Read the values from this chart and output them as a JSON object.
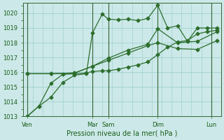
{
  "background_color": "#cce8e8",
  "grid_color": "#99cccc",
  "line_color": "#2d6e2d",
  "title": "Pression niveau de la mer( hPa )",
  "ylim": [
    1013,
    1020.7
  ],
  "yticks": [
    1013,
    1014,
    1015,
    1016,
    1017,
    1018,
    1019,
    1020
  ],
  "xlim": [
    0,
    10
  ],
  "day_labels": [
    "Ven",
    "Mar",
    "Sam",
    "Dim",
    "Lun"
  ],
  "day_positions": [
    0.2,
    3.5,
    4.3,
    6.8,
    9.5
  ],
  "vline_positions": [
    0.2,
    3.5,
    4.3,
    6.8,
    9.5
  ],
  "series1_x": [
    0.2,
    0.8,
    1.4,
    2.0,
    2.6,
    3.2,
    3.5,
    4.0,
    4.3,
    4.8,
    5.3,
    5.8,
    6.3,
    6.8,
    7.3,
    7.8,
    8.3,
    8.8,
    9.3,
    9.8
  ],
  "series1_y": [
    1013.0,
    1013.7,
    1014.3,
    1015.3,
    1015.8,
    1015.9,
    1018.65,
    1019.95,
    1019.6,
    1019.55,
    1019.6,
    1019.5,
    1019.65,
    1020.55,
    1019.0,
    1019.15,
    1018.1,
    1019.0,
    1019.0,
    1019.0
  ],
  "series2_x": [
    0.2,
    1.4,
    2.6,
    3.5,
    4.3,
    5.3,
    6.3,
    6.8,
    7.8,
    8.8,
    9.8
  ],
  "series2_y": [
    1015.9,
    1015.9,
    1015.95,
    1016.4,
    1016.95,
    1017.5,
    1017.9,
    1018.95,
    1018.0,
    1018.1,
    1018.75
  ],
  "series3_x": [
    0.2,
    1.4,
    2.6,
    3.5,
    4.3,
    5.3,
    6.3,
    6.8,
    7.8,
    8.8,
    9.8
  ],
  "series3_y": [
    1015.9,
    1015.9,
    1015.95,
    1016.4,
    1016.8,
    1017.3,
    1017.8,
    1018.0,
    1017.6,
    1017.55,
    1018.15
  ],
  "series4_x": [
    0.2,
    0.8,
    1.4,
    2.0,
    2.6,
    3.2,
    3.5,
    4.0,
    4.3,
    4.8,
    5.3,
    5.8,
    6.3,
    6.8,
    7.3,
    7.8,
    8.3,
    8.8,
    9.3,
    9.8
  ],
  "series4_y": [
    1013.0,
    1013.7,
    1015.25,
    1015.85,
    1015.9,
    1015.95,
    1016.05,
    1016.1,
    1016.1,
    1016.2,
    1016.35,
    1016.5,
    1016.7,
    1017.2,
    1017.7,
    1018.05,
    1018.15,
    1018.6,
    1018.75,
    1018.85
  ],
  "xtick_minor_spacing": 0.5,
  "markersize": 2.5,
  "linewidth": 0.9
}
